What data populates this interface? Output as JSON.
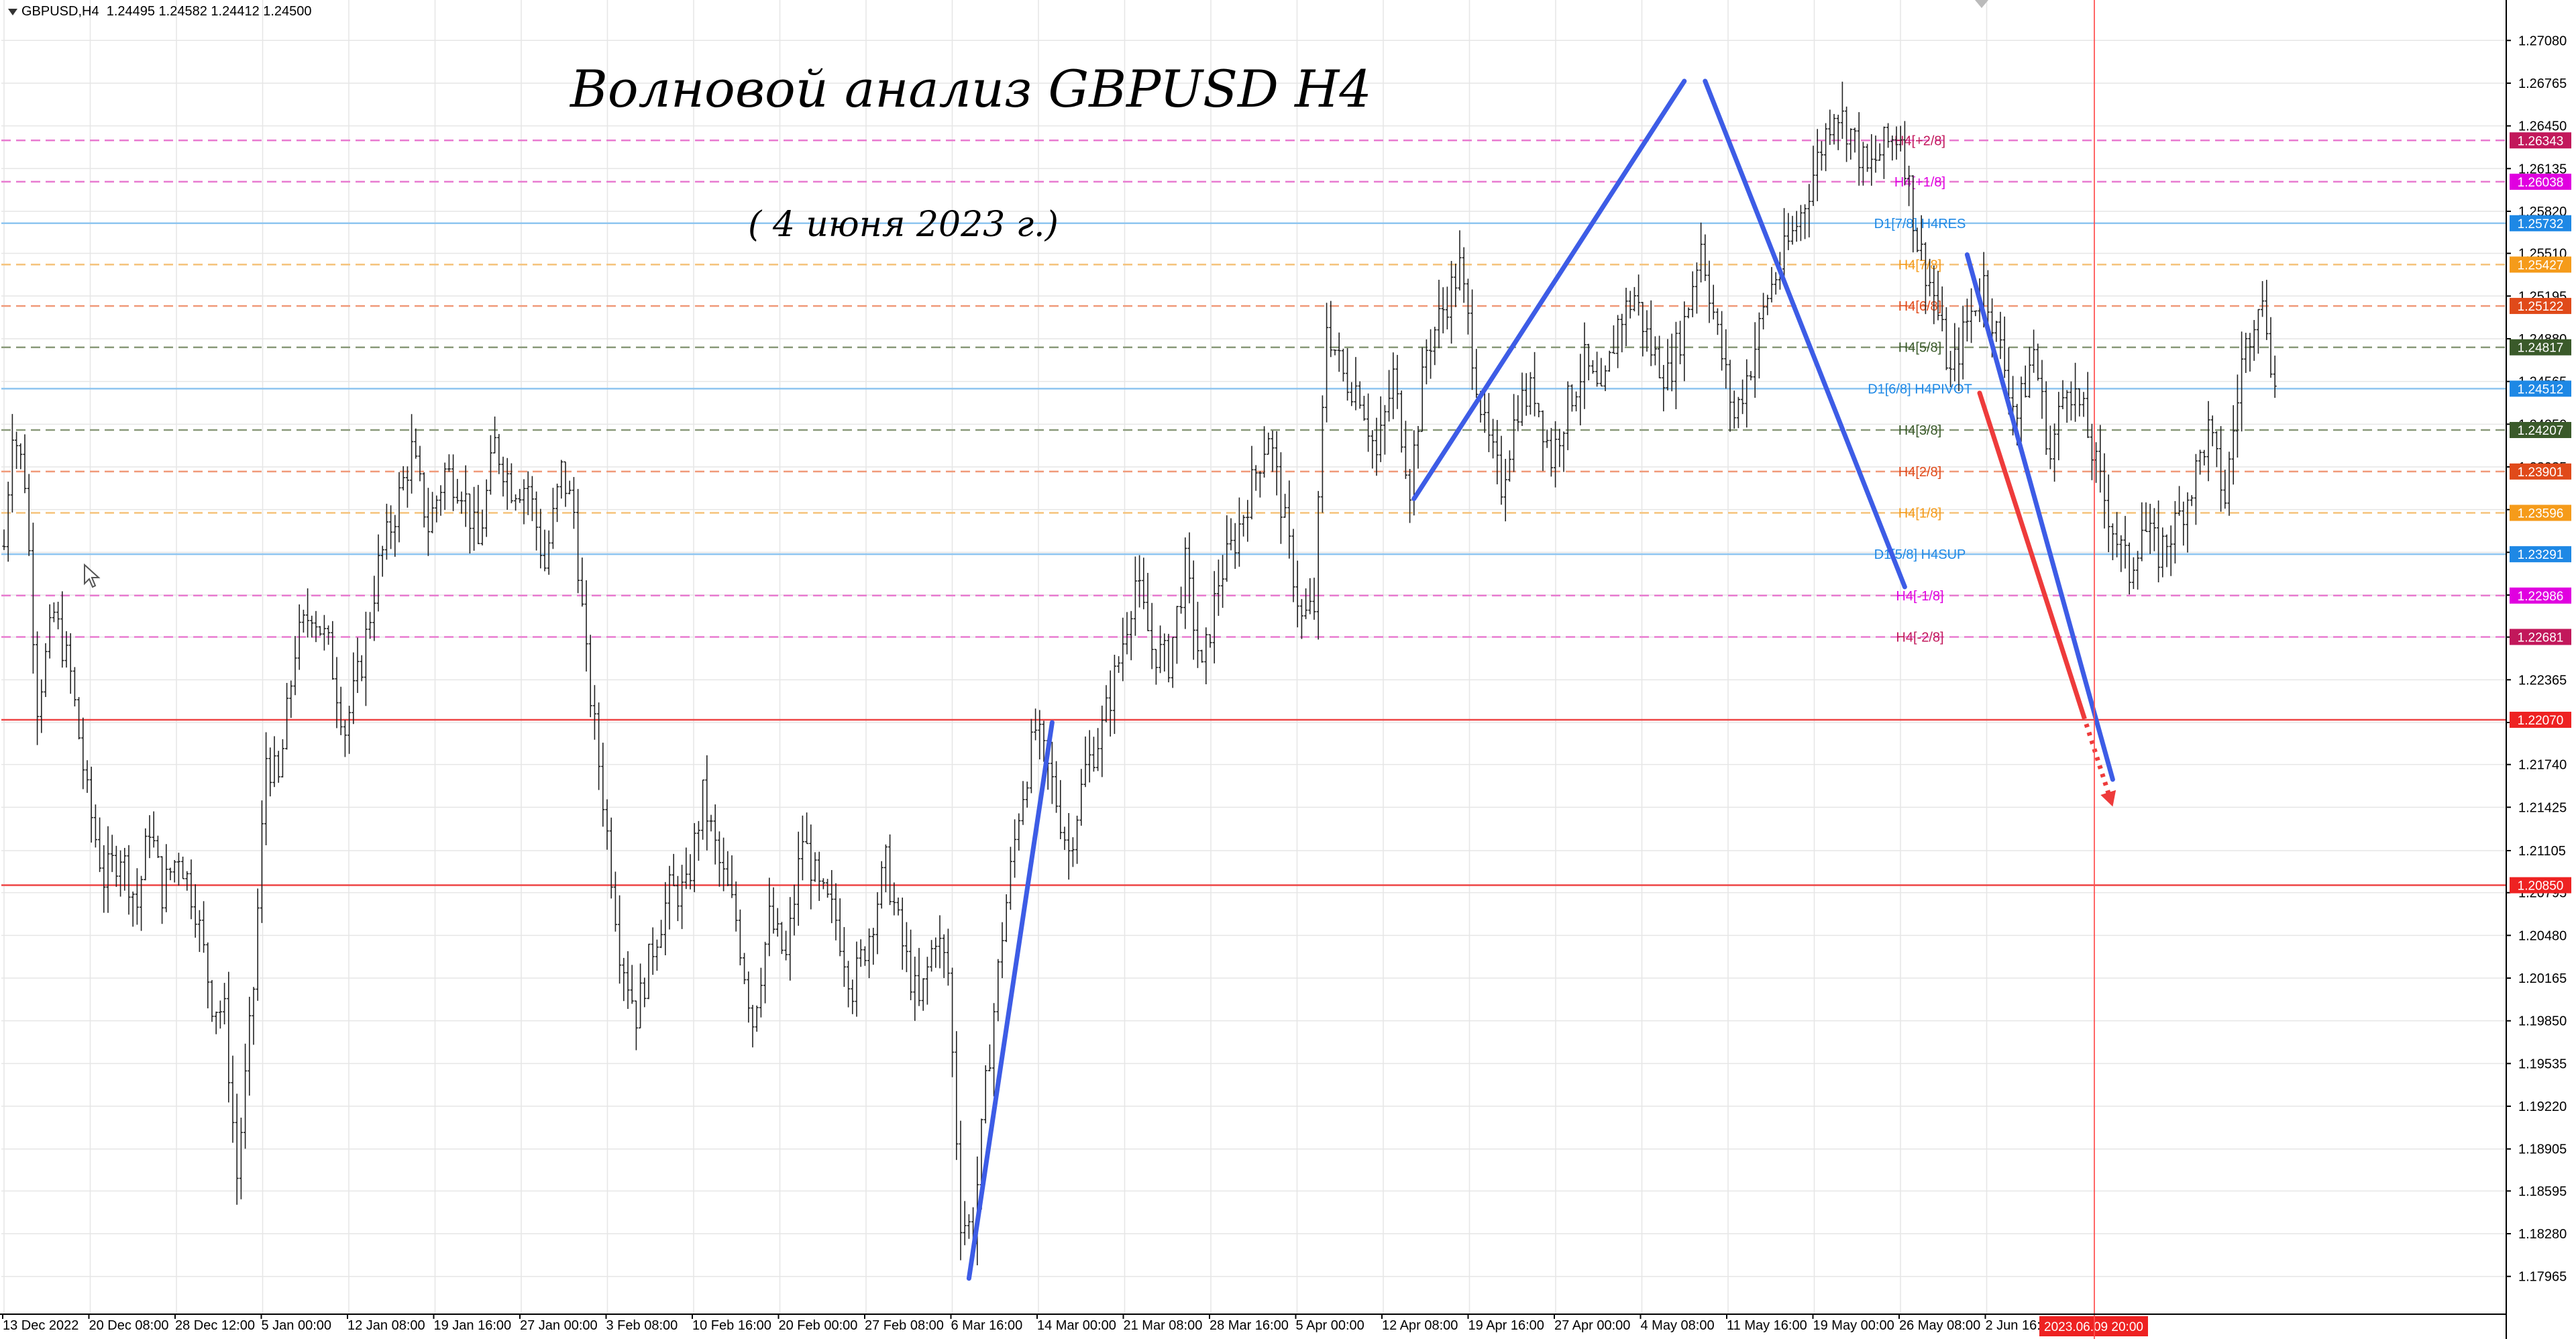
{
  "header": {
    "symbol_line": "GBPUSD,H4  1.24495 1.24582 1.24412 1.24500"
  },
  "annotations": {
    "title": "Волновой анализ GBPUSD H4",
    "subtitle": "( 4 июня 2023 г.)"
  },
  "colors": {
    "wave_blue": "#3d5ce6",
    "forecast_red": "#ee3b3b",
    "candle": "#222222",
    "grid": "#e6e6e6",
    "support_red": "#ee4444"
  },
  "chart_data": {
    "type": "candlestick",
    "symbol": "GBPUSD",
    "timeframe": "H4",
    "ylim": [
      1.1782,
      1.2722
    ],
    "y_ticks": [
      "1.27080",
      "1.26765",
      "1.26450",
      "1.26135",
      "1.25820",
      "1.25510",
      "1.25195",
      "1.24880",
      "1.24565",
      "1.24250",
      "1.23935",
      "1.23620",
      "1.23305",
      "1.22990",
      "1.22680",
      "1.22365",
      "1.22050",
      "1.21740",
      "1.21425",
      "1.21105",
      "1.20795",
      "1.20480",
      "1.20165",
      "1.19850",
      "1.19535",
      "1.19220",
      "1.18905",
      "1.18595",
      "1.18280",
      "1.17965"
    ],
    "x_ticks": [
      "13 Dec 2022",
      "20 Dec 08:00",
      "28 Dec 12:00",
      "5 Jan 00:00",
      "12 Jan 08:00",
      "19 Jan 16:00",
      "27 Jan 00:00",
      "3 Feb 08:00",
      "10 Feb 16:00",
      "20 Feb 00:00",
      "27 Feb 08:00",
      "6 Mar 16:00",
      "14 Mar 00:00",
      "21 Mar 08:00",
      "28 Mar 16:00",
      "5 Apr 00:00",
      "12 Apr 08:00",
      "19 Apr 16:00",
      "27 Apr 00:00",
      "4 May 08:00",
      "11 May 16:00",
      "19 May 00:00",
      "26 May 08:00",
      "2 Jun 16:00"
    ],
    "current_time_label": "2023.06.09 20:00",
    "price_path": [
      [
        0,
        1.2335
      ],
      [
        2,
        1.2425
      ],
      [
        5,
        1.2385
      ],
      [
        8,
        1.222
      ],
      [
        12,
        1.2285
      ],
      [
        16,
        1.224
      ],
      [
        20,
        1.215
      ],
      [
        24,
        1.209
      ],
      [
        28,
        1.211
      ],
      [
        32,
        1.207
      ],
      [
        35,
        1.213
      ],
      [
        38,
        1.208
      ],
      [
        42,
        1.211
      ],
      [
        46,
        1.207
      ],
      [
        50,
        1.2
      ],
      [
        53,
        1.199
      ],
      [
        56,
        1.187
      ],
      [
        60,
        1.201
      ],
      [
        63,
        1.218
      ],
      [
        66,
        1.216
      ],
      [
        70,
        1.226
      ],
      [
        74,
        1.229
      ],
      [
        78,
        1.226
      ],
      [
        82,
        1.22
      ],
      [
        86,
        1.225
      ],
      [
        90,
        1.232
      ],
      [
        94,
        1.236
      ],
      [
        98,
        1.2405
      ],
      [
        102,
        1.235
      ],
      [
        106,
        1.239
      ],
      [
        110,
        1.238
      ],
      [
        114,
        1.2335
      ],
      [
        118,
        1.241
      ],
      [
        122,
        1.238
      ],
      [
        126,
        1.238
      ],
      [
        130,
        1.232
      ],
      [
        134,
        1.239
      ],
      [
        137,
        1.236
      ],
      [
        140,
        1.225
      ],
      [
        144,
        1.215
      ],
      [
        148,
        1.204
      ],
      [
        152,
        1.199
      ],
      [
        156,
        1.204
      ],
      [
        160,
        1.208
      ],
      [
        164,
        1.208
      ],
      [
        168,
        1.215
      ],
      [
        172,
        1.21
      ],
      [
        176,
        1.206
      ],
      [
        180,
        1.1985
      ],
      [
        184,
        1.206
      ],
      [
        188,
        1.203
      ],
      [
        192,
        1.212
      ],
      [
        196,
        1.208
      ],
      [
        200,
        1.206
      ],
      [
        204,
        1.201
      ],
      [
        208,
        1.205
      ],
      [
        212,
        1.21
      ],
      [
        216,
        1.204
      ],
      [
        220,
        1.1995
      ],
      [
        224,
        1.205
      ],
      [
        227,
        1.202
      ],
      [
        230,
        1.184
      ],
      [
        233,
        1.183
      ],
      [
        236,
        1.1935
      ],
      [
        240,
        1.205
      ],
      [
        244,
        1.214
      ],
      [
        248,
        1.22
      ],
      [
        252,
        1.216
      ],
      [
        256,
        1.211
      ],
      [
        260,
        1.217
      ],
      [
        264,
        1.22
      ],
      [
        268,
        1.225
      ],
      [
        272,
        1.231
      ],
      [
        276,
        1.226
      ],
      [
        280,
        1.225
      ],
      [
        284,
        1.232
      ],
      [
        288,
        1.224
      ],
      [
        292,
        1.231
      ],
      [
        296,
        1.234
      ],
      [
        300,
        1.238
      ],
      [
        304,
        1.242
      ],
      [
        308,
        1.235
      ],
      [
        312,
        1.228
      ],
      [
        315,
        1.229
      ],
      [
        318,
        1.25
      ],
      [
        322,
        1.246
      ],
      [
        326,
        1.245
      ],
      [
        330,
        1.24
      ],
      [
        334,
        1.246
      ],
      [
        338,
        1.238
      ],
      [
        342,
        1.248
      ],
      [
        346,
        1.251
      ],
      [
        350,
        1.254
      ],
      [
        353,
        1.248
      ],
      [
        356,
        1.242
      ],
      [
        360,
        1.238
      ],
      [
        364,
        1.244
      ],
      [
        368,
        1.245
      ],
      [
        372,
        1.24
      ],
      [
        376,
        1.244
      ],
      [
        380,
        1.247
      ],
      [
        384,
        1.244
      ],
      [
        388,
        1.25
      ],
      [
        392,
        1.252
      ],
      [
        396,
        1.248
      ],
      [
        400,
        1.246
      ],
      [
        404,
        1.25
      ],
      [
        408,
        1.256
      ],
      [
        412,
        1.249
      ],
      [
        416,
        1.243
      ],
      [
        420,
        1.247
      ],
      [
        424,
        1.252
      ],
      [
        428,
        1.255
      ],
      [
        432,
        1.258
      ],
      [
        436,
        1.262
      ],
      [
        440,
        1.266
      ],
      [
        444,
        1.264
      ],
      [
        448,
        1.261
      ],
      [
        452,
        1.263
      ],
      [
        456,
        1.264
      ],
      [
        460,
        1.256
      ],
      [
        464,
        1.252
      ],
      [
        468,
        1.246
      ],
      [
        472,
        1.25
      ],
      [
        476,
        1.253
      ],
      [
        480,
        1.248
      ],
      [
        484,
        1.243
      ],
      [
        488,
        1.248
      ],
      [
        492,
        1.24
      ],
      [
        496,
        1.246
      ],
      [
        500,
        1.243
      ],
      [
        504,
        1.238
      ],
      [
        508,
        1.234
      ],
      [
        511,
        1.2315
      ],
      [
        514,
        1.235
      ],
      [
        518,
        1.233
      ],
      [
        522,
        1.235
      ],
      [
        526,
        1.238
      ],
      [
        530,
        1.242
      ],
      [
        534,
        1.237
      ],
      [
        538,
        1.247
      ],
      [
        542,
        1.252
      ],
      [
        544,
        1.25
      ],
      [
        546,
        1.245
      ]
    ],
    "levels": [
      {
        "price": "1.26343",
        "bg": "#c2185b",
        "line": "#e87bd0",
        "dash": true,
        "label": "H4[+2/8]",
        "label_color": "#c2185b"
      },
      {
        "price": "1.26038",
        "bg": "#e000e0",
        "line": "#e87bd0",
        "dash": true,
        "label": "H4[+1/8]",
        "label_color": "#e000e0"
      },
      {
        "price": "1.25732",
        "bg": "#1e88e5",
        "line": "#8ec5f0",
        "dash": false,
        "label": "D1[7/8] H4RES",
        "label_color": "#1e88e5"
      },
      {
        "price": "1.25427",
        "bg": "#f59b1a",
        "line": "#f5c27a",
        "dash": true,
        "label": "H4[7/8]",
        "label_color": "#f59b1a"
      },
      {
        "price": "1.25122",
        "bg": "#e04a1a",
        "line": "#f09a7a",
        "dash": true,
        "label": "H4[6/8]",
        "label_color": "#e04a1a"
      },
      {
        "price": "1.24817",
        "bg": "#3a5a2a",
        "line": "#8a9a7a",
        "dash": true,
        "label": "H4[5/8]",
        "label_color": "#3a5a2a"
      },
      {
        "price": "1.24512",
        "bg": "#1e88e5",
        "line": "#8ec5f0",
        "dash": false,
        "label": "D1[6/8] H4PIVOT",
        "label_color": "#1e88e5"
      },
      {
        "price": "1.24207",
        "bg": "#3a5a2a",
        "line": "#8a9a7a",
        "dash": true,
        "label": "H4[3/8]",
        "label_color": "#3a5a2a"
      },
      {
        "price": "1.23901",
        "bg": "#e04a1a",
        "line": "#f09a7a",
        "dash": true,
        "label": "H4[2/8]",
        "label_color": "#e04a1a"
      },
      {
        "price": "1.23596",
        "bg": "#f59b1a",
        "line": "#f5c27a",
        "dash": true,
        "label": "H4[1/8]",
        "label_color": "#f59b1a"
      },
      {
        "price": "1.23291",
        "bg": "#1e88e5",
        "line": "#8ec5f0",
        "dash": false,
        "label": "D1[5/8] H4SUP",
        "label_color": "#1e88e5"
      },
      {
        "price": "1.22986",
        "bg": "#e000e0",
        "line": "#e87bd0",
        "dash": true,
        "label": "H4[-1/8]",
        "label_color": "#e000e0"
      },
      {
        "price": "1.22681",
        "bg": "#c2185b",
        "line": "#e87bd0",
        "dash": true,
        "label": "H4[-2/8]",
        "label_color": "#c2185b"
      },
      {
        "price": "1.22070",
        "bg": "#ee2222",
        "line": "#ee4444",
        "dash": false,
        "label": "",
        "label_color": "#ee2222"
      },
      {
        "price": "1.20850",
        "bg": "#ee2222",
        "line": "#ee4444",
        "dash": false,
        "label": "",
        "label_color": "#ee2222"
      }
    ],
    "wave_lines": [
      {
        "name": "wave-up-march",
        "points": [
          [
            232,
            1.1795
          ],
          [
            252,
            1.2205
          ]
        ]
      },
      {
        "name": "wave-up-april-may",
        "points": [
          [
            339,
            1.237
          ],
          [
            404,
            1.2678
          ]
        ]
      },
      {
        "name": "wave-down-may",
        "points": [
          [
            409,
            1.2678
          ],
          [
            457,
            1.2305
          ]
        ]
      },
      {
        "name": "wave-down-june-forecast",
        "points": [
          [
            472,
            1.255
          ],
          [
            507,
            1.2163
          ]
        ]
      }
    ],
    "forecast_line": {
      "points": [
        [
          475,
          1.2448
        ],
        [
          500,
          1.221
        ]
      ],
      "dotted_to": [
        507,
        1.2143
      ]
    }
  }
}
